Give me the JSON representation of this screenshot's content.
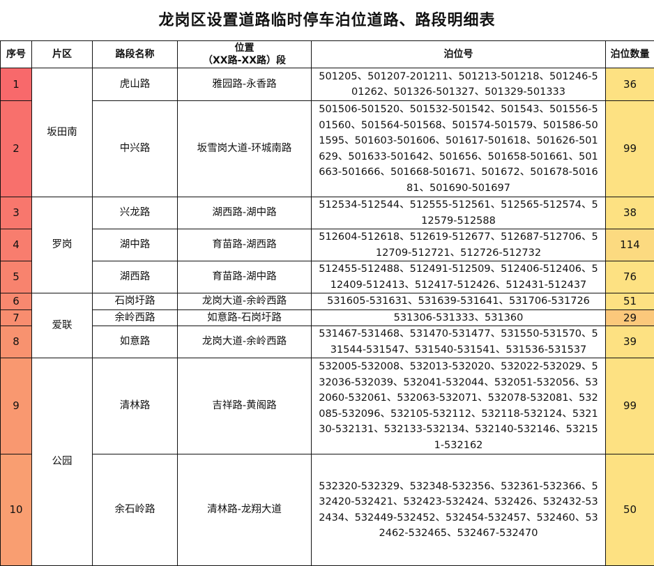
{
  "title": "龙岗区设置道路临时停车泊位道路、路段明细表",
  "headers": {
    "index": "序号",
    "district": "片区",
    "road": "路段名称",
    "position_line1": "位置",
    "position_line2": "（XX路-XX路）段",
    "slots": "泊位号",
    "count": "泊位数量"
  },
  "districts": [
    "坂田南",
    "罗岗",
    "爱联",
    "公园"
  ],
  "rows": [
    {
      "index": "1",
      "road": "虎山路",
      "position": "雅园路-永香路",
      "slots": "501205、501207-201211、501213-501218、501246-501262、501326-501327、501329-501333",
      "count": "36",
      "index_color": "#f8696b",
      "count_color": "#fde182"
    },
    {
      "index": "2",
      "road": "中兴路",
      "position": "坂雪岗大道-环城南路",
      "slots": "501506-501520、501532-501542、501543、501556-501560、501564-501568、501574-501579、501586-501595、501603-501606、501617-501618、501626-501629、501633-501642、501656、501658-501661、501663-501666、501668-501671、501672、501678-501681、501690-501697",
      "count": "99",
      "index_color": "#f8706c",
      "count_color": "#fde182"
    },
    {
      "index": "3",
      "road": "兴龙路",
      "position": "湖西路-湖中路",
      "slots": "512534-512544、512555-512561、512565-512574、512579-512588",
      "count": "38",
      "index_color": "#f8776d",
      "count_color": "#fde182"
    },
    {
      "index": "4",
      "road": "湖中路",
      "position": "育苗路-湖西路",
      "slots": "512604-512618、512619-512677、512687-512706、512709-512721、512726-512732",
      "count": "114",
      "index_color": "#f87d6e",
      "count_color": "#fcda80"
    },
    {
      "index": "5",
      "road": "湖西路",
      "position": "育苗路-湖中路",
      "slots": "512455-512488、512491-512509、512406-512406、512409-512413、512417-512426、512431-512437",
      "count": "76",
      "index_color": "#f8836e",
      "count_color": "#fde182"
    },
    {
      "index": "6",
      "road": "石岗圩路",
      "position": "龙岗大道-余岭西路",
      "slots": "531605-531631、531639-531641、531706-531726",
      "count": "51",
      "index_color": "#f8886f",
      "count_color": "#fde182"
    },
    {
      "index": "7",
      "road": "余岭西路",
      "position": "如意路-石岗圩路",
      "slots": "531306-531333、531360",
      "count": "29",
      "index_color": "#f88d6f",
      "count_color": "#fbc87b"
    },
    {
      "index": "8",
      "road": "如意路",
      "position": "龙岗大道-余岭西路",
      "slots": "531467-531468、531470-531477、531550-531570、531544-531547、531540-531541、531536-531537",
      "count": "39",
      "index_color": "#f8926f",
      "count_color": "#fde182"
    },
    {
      "index": "9",
      "road": "清林路",
      "position": "吉祥路-黄阁路",
      "slots": "532005-532008、532013-532020、532022-532029、532036-532039、532041-532044、532051-532056、532060-532061、532063-532071、532078-532081、532085-532096、532105-532112、532118-532124、532130-532131、532133-532134、532140-532146、532151-532162",
      "count": "99",
      "index_color": "#f99870",
      "count_color": "#fde182"
    },
    {
      "index": "10",
      "road": "余石岭路",
      "position": "清林路-龙翔大道",
      "slots": "532320-532329、532348-532356、532361-532366、532420-532421、532423-532424、532426、532432-532434、532449-532452、532454-532457、532460、532462-532465、532467-532470",
      "count": "50",
      "index_color": "#f99e71",
      "count_color": "#fde182"
    }
  ]
}
